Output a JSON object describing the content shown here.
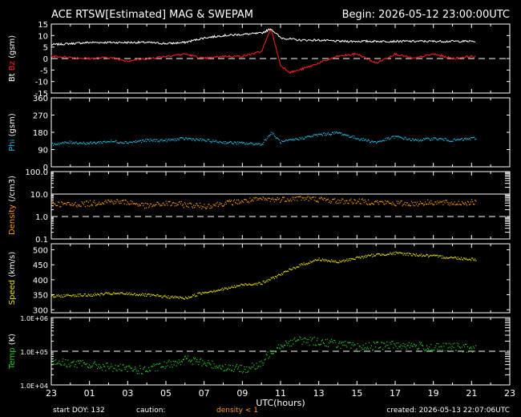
{
  "title_left": "ACE RTSW[Estimated] MAG & SWEPAM",
  "title_right": "Begin: 2026-05-12 23:00:00UTC",
  "xaxis": {
    "label": "UTC(hours)",
    "ticks": [
      "23",
      "01",
      "03",
      "05",
      "07",
      "09",
      "11",
      "13",
      "15",
      "17",
      "19",
      "21",
      "23"
    ]
  },
  "footer": {
    "start_doy": "start DOY: 132",
    "caution": "caution:",
    "density_note": "density < 1",
    "created": "created: 2026-05-13 22:07:06UTC"
  },
  "colors": {
    "bt": "#ffffff",
    "bz": "#ff2020",
    "phi": "#20b8e0",
    "density": "#ff9900",
    "speed": "#e8e000",
    "temp": "#20d020",
    "axis": "#ffffff",
    "background": "#000000"
  },
  "chart_data": [
    {
      "type": "line",
      "ylabel_parts": [
        {
          "text": "Bt",
          "color": "#ffffff"
        },
        {
          "text": " Bz",
          "color": "#ff2020"
        },
        {
          "text": " (gsm)",
          "color": "#ffffff"
        }
      ],
      "yticks": [
        "15",
        "10",
        "5",
        "0",
        "-5",
        "-10",
        "-15"
      ],
      "ylim": [
        -15,
        15
      ],
      "reference_line": 0,
      "series": [
        {
          "color": "#ffffff",
          "x": [
            0,
            1,
            2,
            3,
            4,
            5,
            6,
            7,
            8,
            9,
            10,
            11,
            11.5,
            12,
            13,
            14,
            15,
            16,
            17,
            18,
            19,
            20,
            21,
            22,
            23
          ],
          "values": [
            6,
            6.5,
            7,
            7,
            7,
            7,
            6.5,
            7,
            9,
            10,
            10.5,
            11,
            13,
            9,
            8,
            8,
            7.5,
            7.5,
            7.5,
            7.5,
            7.5,
            7.5,
            7.5,
            7.5,
            7
          ]
        },
        {
          "color": "#ff2020",
          "x": [
            0,
            1,
            2,
            3,
            4,
            5,
            6,
            7,
            8,
            9,
            10,
            11,
            11.5,
            12,
            12.5,
            13,
            14,
            15,
            16,
            17,
            18,
            19,
            20,
            21,
            22,
            23
          ],
          "values": [
            1,
            0.5,
            0,
            0.5,
            -1,
            0,
            1,
            2,
            0,
            1,
            1,
            3,
            13,
            -3,
            -6,
            -5,
            -2,
            1,
            2,
            -2,
            2,
            0,
            2,
            0,
            1,
            0
          ]
        }
      ]
    },
    {
      "type": "scatter",
      "ylabel_parts": [
        {
          "text": "Phi",
          "color": "#20b8e0"
        },
        {
          "text": " (gsm)",
          "color": "#ffffff"
        }
      ],
      "yticks": [
        "360",
        "270",
        "180",
        "90",
        "0"
      ],
      "ylim": [
        0,
        360
      ],
      "series": [
        {
          "color": "#20b8e0",
          "x": [
            0,
            1,
            2,
            3,
            4,
            5,
            6,
            7,
            8,
            9,
            10,
            11,
            11.5,
            12,
            13,
            14,
            15,
            16,
            17,
            18,
            19,
            20,
            21,
            22,
            23
          ],
          "values": [
            120,
            130,
            125,
            135,
            130,
            140,
            140,
            150,
            140,
            130,
            125,
            120,
            180,
            130,
            150,
            170,
            180,
            150,
            130,
            160,
            140,
            150,
            140,
            150,
            160
          ]
        }
      ]
    },
    {
      "type": "scatter",
      "ylabel_parts": [
        {
          "text": "Density",
          "color": "#ff9900"
        },
        {
          "text": " (/cm3)",
          "color": "#ffffff"
        }
      ],
      "yticks": [
        "100.0",
        "10.0",
        "1.0",
        "0.1"
      ],
      "yscale": "log",
      "ylim": [
        0.1,
        100
      ],
      "reference_lines": [
        1,
        10
      ],
      "series": [
        {
          "color": "#ff9900",
          "x": [
            0,
            1,
            2,
            3,
            4,
            5,
            6,
            7,
            8,
            9,
            10,
            11,
            12,
            13,
            14,
            15,
            16,
            17,
            18,
            19,
            20,
            21,
            22,
            23
          ],
          "values": [
            4,
            3.5,
            4,
            5,
            4.5,
            3,
            4,
            3.5,
            3,
            4,
            5,
            6,
            6,
            7,
            6,
            5,
            5,
            4.5,
            4,
            4,
            4.5,
            4,
            4.5,
            4
          ]
        }
      ]
    },
    {
      "type": "scatter",
      "ylabel_parts": [
        {
          "text": "Speed",
          "color": "#e8e000"
        },
        {
          "text": " (km/s)",
          "color": "#ffffff"
        }
      ],
      "yticks": [
        "500",
        "450",
        "400",
        "350",
        "300"
      ],
      "ylim": [
        290,
        520
      ],
      "series": [
        {
          "color": "#e8e000",
          "x": [
            0,
            1,
            2,
            3,
            4,
            5,
            6,
            7,
            8,
            9,
            10,
            11,
            12,
            13,
            14,
            15,
            16,
            17,
            18,
            19,
            20,
            21,
            22,
            23
          ],
          "values": [
            345,
            350,
            350,
            355,
            355,
            350,
            345,
            340,
            360,
            370,
            385,
            390,
            420,
            450,
            470,
            460,
            475,
            485,
            490,
            485,
            480,
            475,
            470,
            470
          ]
        }
      ]
    },
    {
      "type": "scatter",
      "ylabel_parts": [
        {
          "text": "Temp",
          "color": "#20d020"
        },
        {
          "text": " (K)",
          "color": "#ffffff"
        }
      ],
      "yticks": [
        "1.0E+06",
        "1.0E+05",
        "1.0E+04"
      ],
      "yscale": "log",
      "ylim": [
        10000,
        1000000
      ],
      "reference_line": 100000,
      "series": [
        {
          "color": "#20d020",
          "x": [
            0,
            1,
            2,
            3,
            4,
            5,
            6,
            7,
            8,
            9,
            10,
            11,
            12,
            13,
            14,
            15,
            16,
            17,
            18,
            19,
            20,
            21,
            22,
            23
          ],
          "values": [
            50000,
            45000,
            40000,
            35000,
            30000,
            28000,
            40000,
            60000,
            45000,
            35000,
            30000,
            40000,
            160000,
            220000,
            200000,
            170000,
            130000,
            150000,
            160000,
            150000,
            130000,
            140000,
            120000,
            110000
          ]
        }
      ]
    }
  ]
}
